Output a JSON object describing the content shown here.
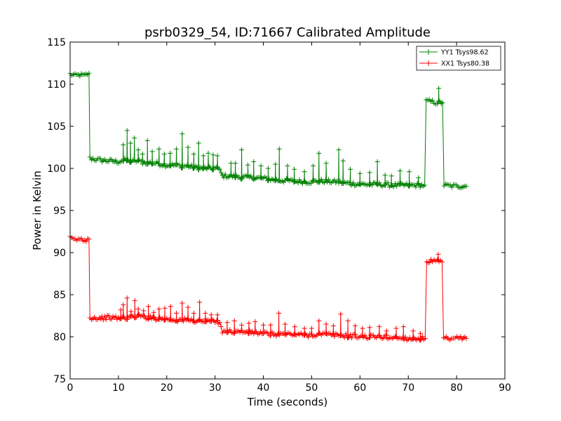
{
  "chart_data": {
    "type": "line",
    "title": "psrb0329_54, ID:71667 Calibrated Amplitude",
    "xlabel": "Time (seconds)",
    "ylabel": "Power in Kelvin",
    "xlim": [
      0,
      90
    ],
    "ylim": [
      75,
      115
    ],
    "xticks": [
      0,
      10,
      20,
      30,
      40,
      50,
      60,
      70,
      80,
      90
    ],
    "yticks": [
      75,
      80,
      85,
      90,
      95,
      100,
      105,
      110,
      115
    ],
    "grid": false,
    "legend_position": "top-right",
    "series": [
      {
        "name": "YY1 Tsys98.62",
        "color": "#008000",
        "marker": "+",
        "points": [
          [
            0,
            111.2
          ],
          [
            1,
            111.0
          ],
          [
            2,
            111.1
          ],
          [
            3,
            111.0
          ],
          [
            3.9,
            111.3
          ],
          [
            4.1,
            101.2
          ],
          [
            6,
            101.0
          ],
          [
            8,
            100.9
          ],
          [
            10,
            100.8
          ],
          [
            11,
            101.0
          ],
          [
            12,
            100.9
          ],
          [
            13,
            100.8
          ],
          [
            14,
            100.9
          ],
          [
            15,
            100.7
          ],
          [
            16,
            100.7
          ],
          [
            18,
            100.6
          ],
          [
            20,
            100.4
          ],
          [
            22,
            100.4
          ],
          [
            23,
            100.3
          ],
          [
            24,
            100.3
          ],
          [
            26,
            100.1
          ],
          [
            28,
            100.0
          ],
          [
            30,
            100.0
          ],
          [
            31,
            99.9
          ],
          [
            31.5,
            99.1
          ],
          [
            33,
            99.1
          ],
          [
            35,
            99.0
          ],
          [
            38,
            98.9
          ],
          [
            40,
            98.8
          ],
          [
            43,
            98.6
          ],
          [
            46,
            98.5
          ],
          [
            49,
            98.4
          ],
          [
            52,
            98.5
          ],
          [
            55,
            98.4
          ],
          [
            58,
            98.2
          ],
          [
            61,
            98.1
          ],
          [
            64,
            98.1
          ],
          [
            67,
            98.0
          ],
          [
            70,
            98.0
          ],
          [
            73.4,
            98.0
          ],
          [
            73.7,
            108.0
          ],
          [
            75,
            107.9
          ],
          [
            76,
            107.8
          ],
          [
            77.1,
            107.8
          ],
          [
            77.4,
            98.0
          ],
          [
            79,
            97.9
          ],
          [
            80,
            97.9
          ],
          [
            82,
            97.9
          ]
        ],
        "spikes": [
          [
            11,
            102.8
          ],
          [
            11.8,
            104.5
          ],
          [
            12.5,
            103.0
          ],
          [
            13.3,
            103.6
          ],
          [
            14.1,
            102.2
          ],
          [
            15,
            101.7
          ],
          [
            16,
            103.3
          ],
          [
            17,
            102.0
          ],
          [
            18.4,
            102.3
          ],
          [
            19.5,
            101.7
          ],
          [
            20.7,
            101.8
          ],
          [
            22,
            102.3
          ],
          [
            23.2,
            104.1
          ],
          [
            24.4,
            102.5
          ],
          [
            25.6,
            101.7
          ],
          [
            26.6,
            103.0
          ],
          [
            27.6,
            101.5
          ],
          [
            28.6,
            101.8
          ],
          [
            29.6,
            101.6
          ],
          [
            30.5,
            101.5
          ],
          [
            33.3,
            100.6
          ],
          [
            34.2,
            100.6
          ],
          [
            35.5,
            102.2
          ],
          [
            36.8,
            100.4
          ],
          [
            38,
            100.8
          ],
          [
            39.5,
            100.3
          ],
          [
            41,
            100.0
          ],
          [
            42.5,
            100.5
          ],
          [
            43.3,
            102.3
          ],
          [
            45,
            100.3
          ],
          [
            46.4,
            99.9
          ],
          [
            48.5,
            99.6
          ],
          [
            50.3,
            100.3
          ],
          [
            51.5,
            101.8
          ],
          [
            53,
            100.6
          ],
          [
            55.6,
            102.2
          ],
          [
            56.5,
            100.9
          ],
          [
            58,
            99.9
          ],
          [
            60,
            99.4
          ],
          [
            62,
            99.5
          ],
          [
            63.6,
            100.8
          ],
          [
            65.2,
            99.2
          ],
          [
            66.5,
            99.1
          ],
          [
            68.3,
            99.7
          ],
          [
            70.2,
            99.6
          ],
          [
            72.1,
            98.9
          ],
          [
            76.3,
            109.5
          ]
        ]
      },
      {
        "name": "XX1 Tsys80.38",
        "color": "#ff0000",
        "marker": "+",
        "points": [
          [
            0,
            91.7
          ],
          [
            1,
            91.5
          ],
          [
            2,
            91.6
          ],
          [
            3,
            91.5
          ],
          [
            3.9,
            91.6
          ],
          [
            4.1,
            82.3
          ],
          [
            6,
            82.2
          ],
          [
            8,
            82.3
          ],
          [
            10,
            82.2
          ],
          [
            12,
            82.3
          ],
          [
            13,
            82.4
          ],
          [
            14,
            82.5
          ],
          [
            16,
            82.3
          ],
          [
            18,
            82.2
          ],
          [
            20,
            82.1
          ],
          [
            22,
            82.0
          ],
          [
            24,
            82.0
          ],
          [
            26,
            81.9
          ],
          [
            28,
            81.9
          ],
          [
            30,
            81.8
          ],
          [
            31,
            81.7
          ],
          [
            31.5,
            80.7
          ],
          [
            34,
            80.6
          ],
          [
            36,
            80.6
          ],
          [
            38,
            80.5
          ],
          [
            40,
            80.4
          ],
          [
            43,
            80.3
          ],
          [
            46,
            80.3
          ],
          [
            49,
            80.2
          ],
          [
            52,
            80.3
          ],
          [
            55,
            80.2
          ],
          [
            58,
            80.1
          ],
          [
            61,
            80.0
          ],
          [
            64,
            80.0
          ],
          [
            67,
            79.9
          ],
          [
            70,
            79.8
          ],
          [
            73.5,
            79.8
          ],
          [
            73.8,
            89.0
          ],
          [
            75,
            89.0
          ],
          [
            76,
            88.9
          ],
          [
            77.0,
            88.9
          ],
          [
            77.3,
            79.8
          ],
          [
            79,
            79.7
          ],
          [
            80,
            79.8
          ],
          [
            82,
            79.8
          ]
        ],
        "spikes": [
          [
            10.5,
            83.2
          ],
          [
            11,
            83.8
          ],
          [
            11.8,
            84.6
          ],
          [
            12.6,
            83.0
          ],
          [
            13.4,
            84.3
          ],
          [
            14.1,
            83.3
          ],
          [
            15.2,
            83.1
          ],
          [
            16.2,
            83.6
          ],
          [
            17.3,
            82.9
          ],
          [
            18.4,
            83.3
          ],
          [
            19.6,
            83.4
          ],
          [
            20.8,
            83.6
          ],
          [
            22,
            82.8
          ],
          [
            23.2,
            84.0
          ],
          [
            24.4,
            83.5
          ],
          [
            25.6,
            82.8
          ],
          [
            26.8,
            84.1
          ],
          [
            28,
            82.8
          ],
          [
            29.2,
            82.6
          ],
          [
            30.5,
            82.6
          ],
          [
            32.5,
            81.7
          ],
          [
            34,
            81.9
          ],
          [
            35.5,
            81.4
          ],
          [
            37,
            81.6
          ],
          [
            38.3,
            81.8
          ],
          [
            40,
            81.4
          ],
          [
            41.5,
            81.4
          ],
          [
            43.2,
            82.8
          ],
          [
            44.5,
            81.5
          ],
          [
            46.5,
            81.2
          ],
          [
            48.5,
            81.0
          ],
          [
            50,
            81.0
          ],
          [
            51.5,
            81.9
          ],
          [
            53,
            81.5
          ],
          [
            54.5,
            81.3
          ],
          [
            56,
            82.7
          ],
          [
            57.5,
            81.9
          ],
          [
            59,
            81.3
          ],
          [
            60.5,
            81.0
          ],
          [
            62,
            81.1
          ],
          [
            64,
            81.2
          ],
          [
            65.5,
            80.7
          ],
          [
            67.5,
            81.0
          ],
          [
            69,
            81.2
          ],
          [
            71,
            80.7
          ],
          [
            72.5,
            80.4
          ],
          [
            76.2,
            89.8
          ]
        ]
      }
    ]
  }
}
